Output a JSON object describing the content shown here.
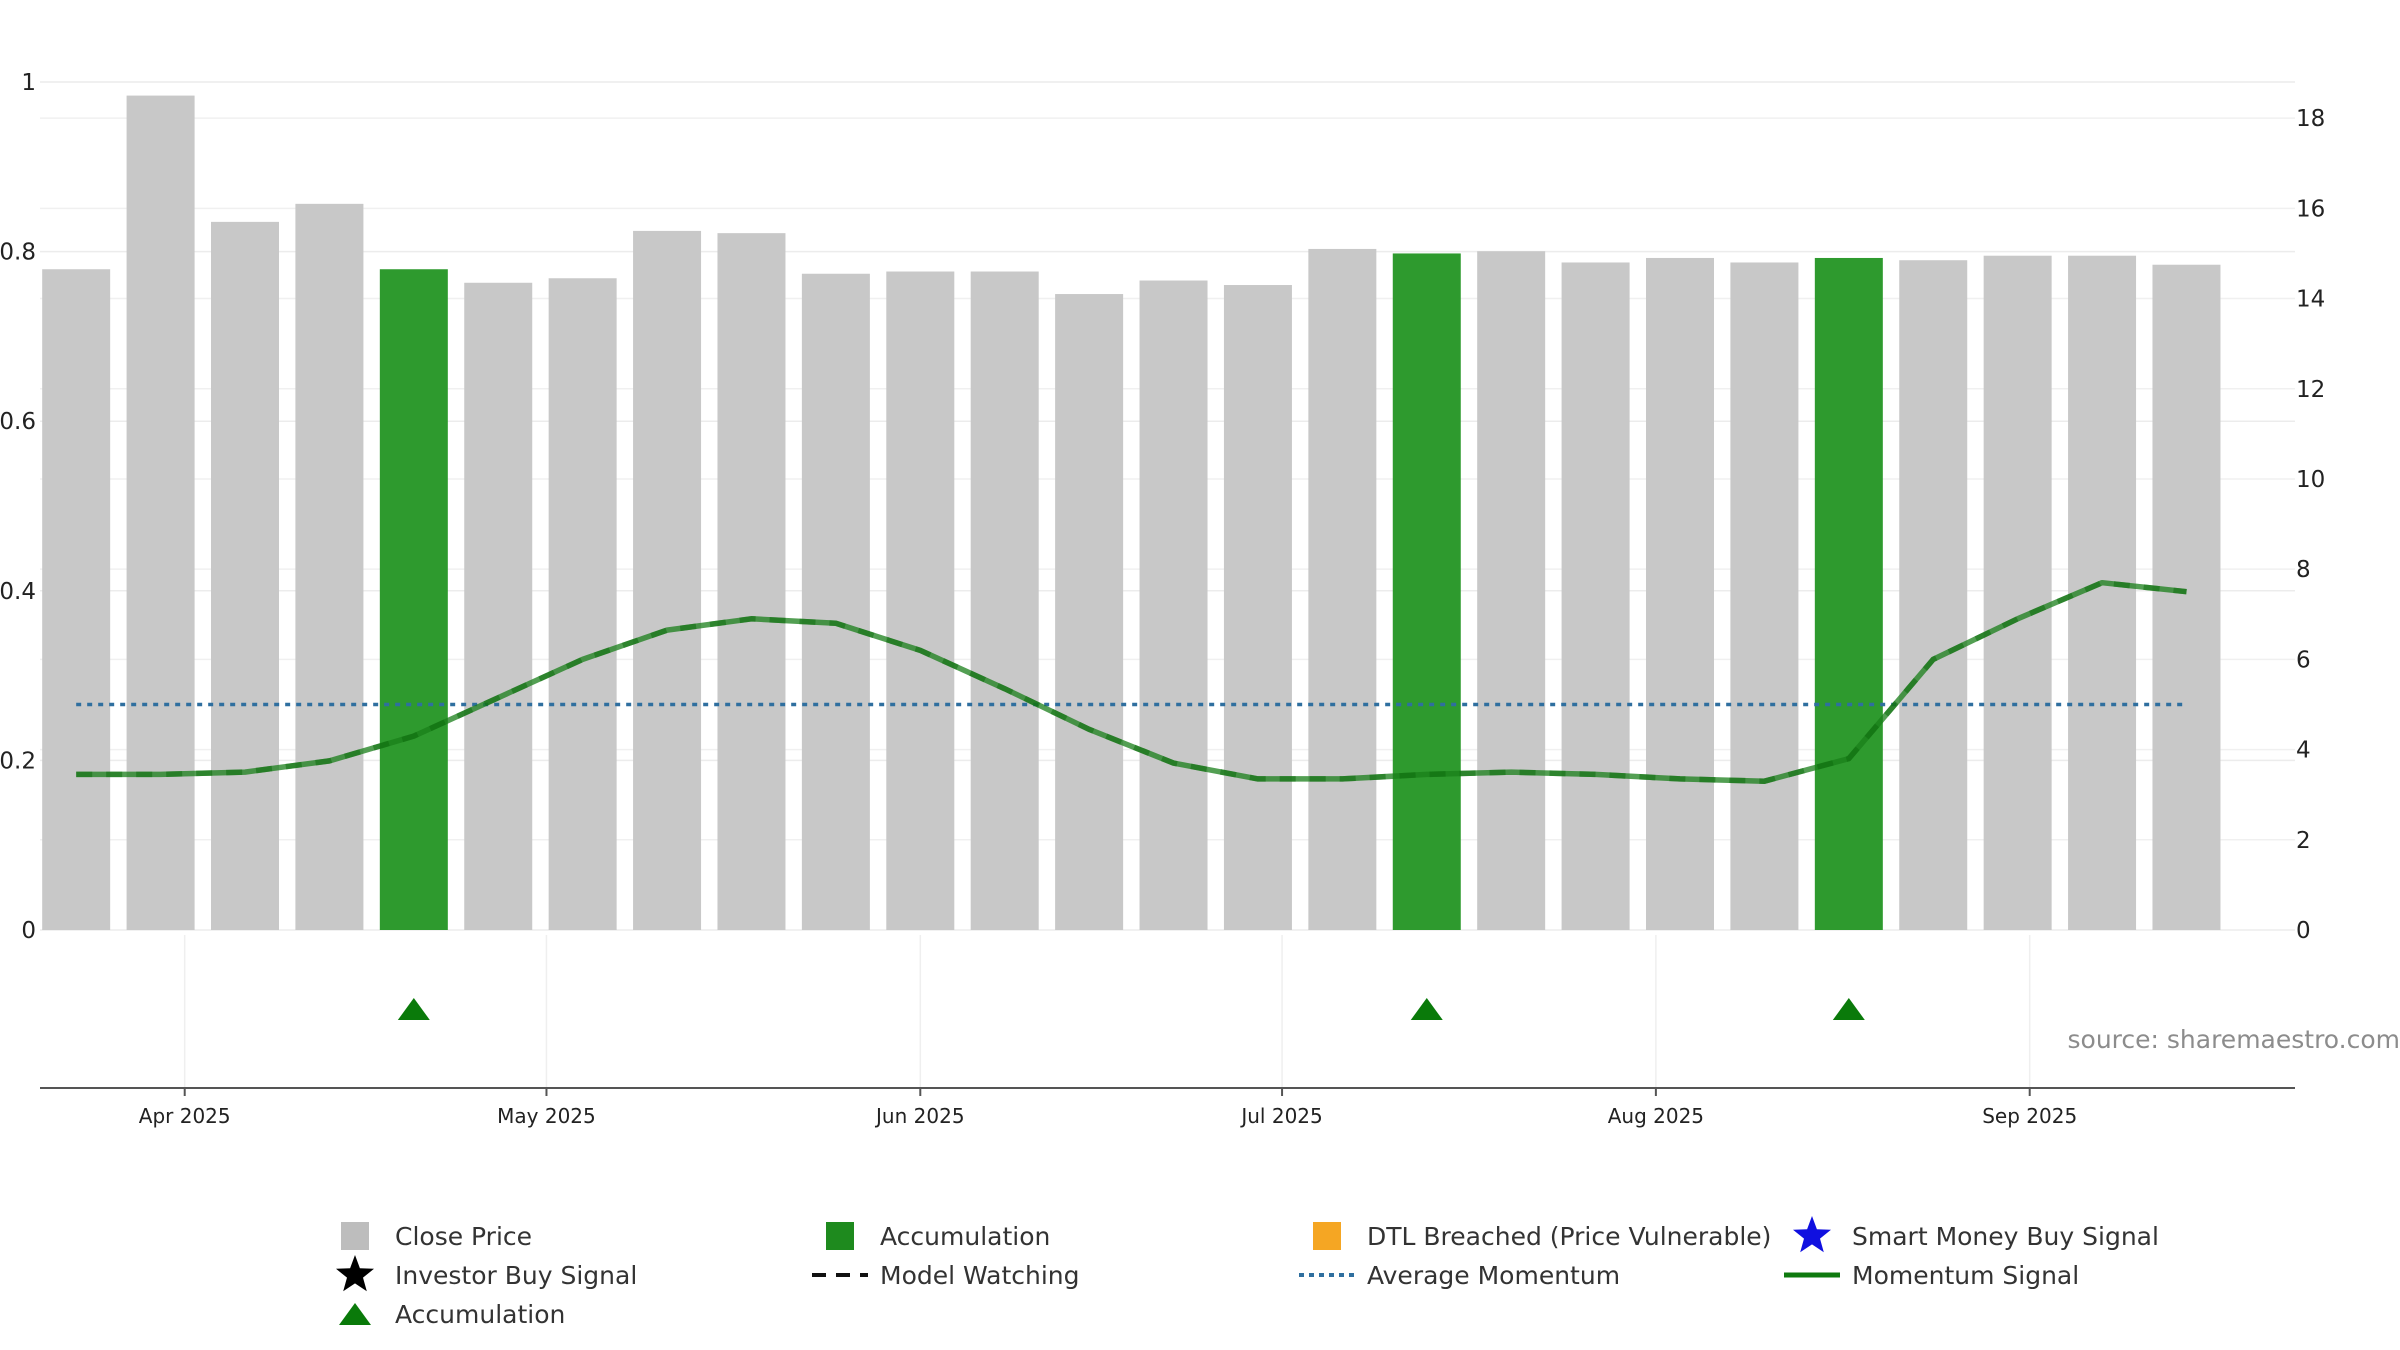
{
  "chart_data": {
    "type": "bar",
    "source_text": "source: sharemaestro.com",
    "left_axis": {
      "ticks": [
        "0",
        "0.2",
        "0.4",
        "0.6",
        "0.8",
        "1"
      ],
      "ylim": [
        0,
        1
      ]
    },
    "right_axis": {
      "ticks": [
        "0",
        "2",
        "4",
        "6",
        "8",
        "10",
        "12",
        "14",
        "16",
        "18"
      ],
      "ylim": [
        0,
        19.4
      ]
    },
    "x_axis": {
      "range": [
        "2025-03-20",
        "2025-09-23"
      ],
      "ticks": [
        {
          "label": "Apr 2025",
          "date": "2025-04-01"
        },
        {
          "label": "May 2025",
          "date": "2025-05-01"
        },
        {
          "label": "Jun 2025",
          "date": "2025-06-01"
        },
        {
          "label": "Jul 2025",
          "date": "2025-07-01"
        },
        {
          "label": "Aug 2025",
          "date": "2025-08-01"
        },
        {
          "label": "Sep 2025",
          "date": "2025-09-01"
        }
      ]
    },
    "grid": true,
    "legend_position": "bottom",
    "bar_dates": [
      "2025-03-23",
      "2025-03-30",
      "2025-04-06",
      "2025-04-13",
      "2025-04-20",
      "2025-04-27",
      "2025-05-04",
      "2025-05-11",
      "2025-05-18",
      "2025-05-25",
      "2025-06-01",
      "2025-06-08",
      "2025-06-15",
      "2025-06-22",
      "2025-06-29",
      "2025-07-06",
      "2025-07-13",
      "2025-07-20",
      "2025-07-27",
      "2025-08-03",
      "2025-08-10",
      "2025-08-17",
      "2025-08-24",
      "2025-08-31",
      "2025-09-07",
      "2025-09-14"
    ],
    "close_price": [
      14.65,
      18.5,
      15.7,
      16.1,
      14.65,
      14.35,
      14.45,
      15.5,
      15.45,
      14.55,
      14.6,
      14.6,
      14.1,
      14.4,
      14.3,
      15.1,
      15.0,
      15.05,
      14.8,
      14.9,
      14.8,
      14.9,
      14.85,
      14.95,
      14.95,
      14.75
    ],
    "accumulation_bar": [
      false,
      false,
      false,
      false,
      true,
      false,
      false,
      false,
      false,
      false,
      false,
      false,
      false,
      false,
      false,
      false,
      true,
      false,
      false,
      false,
      false,
      true,
      false,
      false,
      false,
      false
    ],
    "momentum_signal": [
      3.45,
      3.45,
      3.5,
      3.75,
      4.3,
      5.15,
      6.0,
      6.65,
      6.9,
      6.8,
      6.2,
      5.35,
      4.45,
      3.7,
      3.35,
      3.35,
      3.45,
      3.5,
      3.45,
      3.35,
      3.3,
      3.8,
      6.0,
      6.9,
      7.7,
      7.5
    ],
    "average_momentum": 5.0,
    "accumulation_markers": [
      "2025-04-20",
      "2025-07-13",
      "2025-08-17"
    ],
    "colors": {
      "close_price": "#c8c8c8",
      "accumulation": "#2e9a2e",
      "momentum_signal": "#1a7f1a",
      "average_momentum": "#2f6f9f",
      "dtl_breached": "#f5a623",
      "smart_money": "#1010e0",
      "investor_buy": "#000000",
      "marker": "#0a7a0a"
    },
    "legend": [
      {
        "label": "Close Price",
        "symbol": "gray-square-icon"
      },
      {
        "label": "Accumulation",
        "symbol": "green-square-icon"
      },
      {
        "label": "DTL Breached (Price Vulnerable)",
        "symbol": "orange-square-icon"
      },
      {
        "label": "Smart Money Buy Signal",
        "symbol": "blue-star-icon"
      },
      {
        "label": "Investor Buy Signal",
        "symbol": "black-star-icon"
      },
      {
        "label": "Model Watching",
        "symbol": "black-dashed-line-icon"
      },
      {
        "label": "Average Momentum",
        "symbol": "blue-dotted-line-icon"
      },
      {
        "label": "Momentum Signal",
        "symbol": "green-line-icon"
      },
      {
        "label": "Accumulation",
        "symbol": "green-triangle-icon"
      }
    ]
  }
}
